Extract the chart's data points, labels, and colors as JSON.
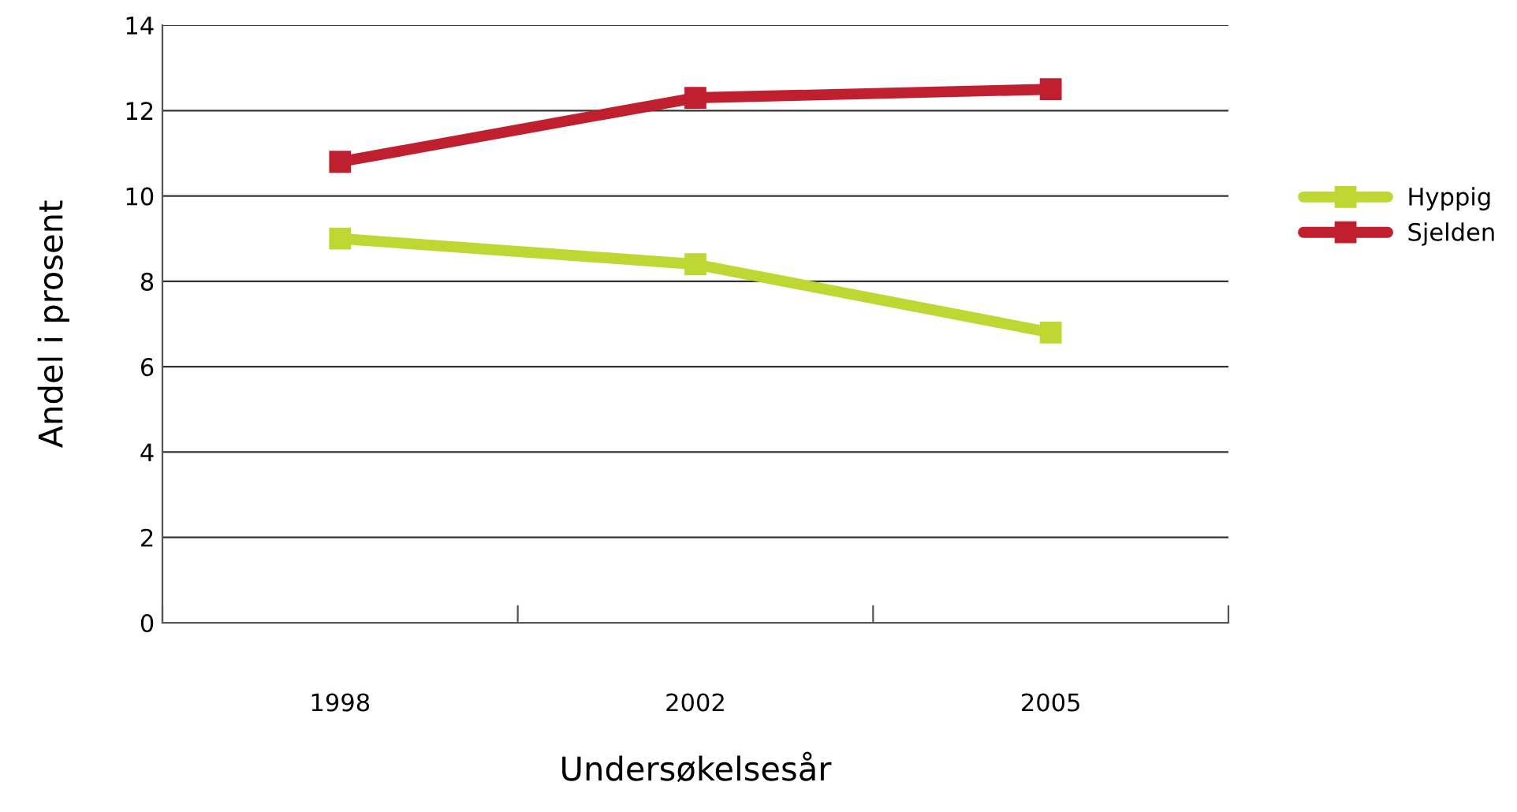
{
  "chart_data": {
    "type": "line",
    "xlabel": "Undersøkelsesår",
    "ylabel": "Andel i prosent",
    "categories": [
      "1998",
      "2002",
      "2005"
    ],
    "series": [
      {
        "name": "Hyppig",
        "color": "#bed733",
        "values": [
          9.0,
          8.4,
          6.8
        ]
      },
      {
        "name": "Sjelden",
        "color": "#c01f2f",
        "values": [
          10.8,
          12.3,
          12.5
        ]
      }
    ],
    "ylim": [
      0,
      14
    ],
    "yticks": [
      0,
      2,
      4,
      6,
      8,
      10,
      12,
      14
    ],
    "grid": "y",
    "legend": "right",
    "marker": "square",
    "line_style": "solid"
  }
}
